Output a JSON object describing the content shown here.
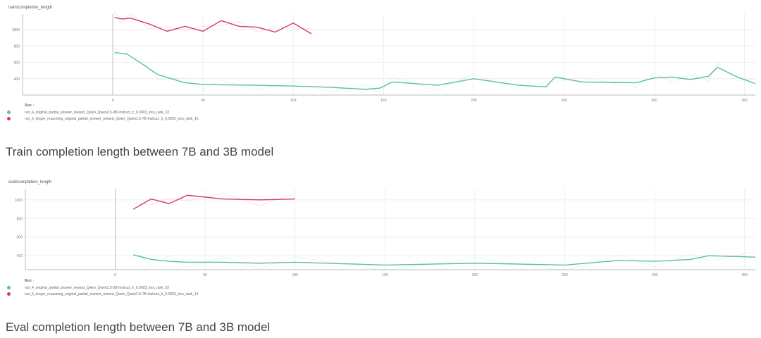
{
  "chart_data": [
    {
      "type": "line",
      "title": "train/completion_length",
      "xlim": [
        -50,
        356
      ],
      "ylim": [
        200,
        1190
      ],
      "xticks": [
        0,
        50,
        100,
        150,
        200,
        250,
        300,
        350
      ],
      "yticks": [
        400,
        600,
        800,
        1000
      ],
      "grid": true,
      "legend_title": "Run ↑",
      "legend_placement": "bottom-left",
      "series": [
        {
          "name": "run_4_original_partial_answer_reward_Qwen_Qwen2.5-3B-Instruct_lr_0.0003_lora_rank_32",
          "color": "#5bbf9c",
          "x": [
            1,
            8,
            15,
            25,
            40,
            50,
            60,
            80,
            100,
            120,
            140,
            148,
            155,
            180,
            200,
            225,
            240,
            245,
            260,
            290,
            300,
            310,
            320,
            330,
            335,
            345,
            356
          ],
          "y": [
            720,
            700,
            600,
            450,
            350,
            330,
            325,
            320,
            310,
            295,
            270,
            285,
            360,
            320,
            400,
            320,
            300,
            420,
            360,
            350,
            410,
            420,
            390,
            430,
            540,
            430,
            340
          ]
        },
        {
          "name": "run_6_longer_reasoning_original_partial_answer_reward_Qwen_Qwen2.5-7B-Instruct_lr_0.0003_lora_rank_16",
          "color": "#d23a72",
          "x": [
            1,
            5,
            10,
            20,
            30,
            40,
            50,
            60,
            70,
            80,
            90,
            100,
            110
          ],
          "y": [
            1150,
            1130,
            1140,
            1070,
            980,
            1040,
            980,
            1110,
            1040,
            1030,
            970,
            1080,
            950
          ]
        }
      ]
    },
    {
      "type": "line",
      "title": "eval/completion_length",
      "xlim": [
        -50,
        356
      ],
      "ylim": [
        250,
        1120
      ],
      "xticks": [
        0,
        50,
        100,
        150,
        200,
        250,
        300,
        350
      ],
      "yticks": [
        400,
        600,
        800,
        1000
      ],
      "grid": true,
      "legend_title": "Run ↑",
      "legend_placement": "bottom-left",
      "series": [
        {
          "name": "run_4_original_partial_answer_reward_Qwen_Qwen2.5-3B-Instruct_lr_0.0003_lora_rank_32",
          "color": "#5bbf9c",
          "x": [
            10,
            20,
            30,
            40,
            60,
            80,
            100,
            150,
            200,
            250,
            280,
            300,
            320,
            330,
            356
          ],
          "y": [
            410,
            360,
            340,
            330,
            330,
            320,
            330,
            300,
            320,
            300,
            350,
            340,
            360,
            400,
            385
          ]
        },
        {
          "name": "run_6_longer_reasoning_original_partial_answer_reward_Qwen_Qwen2.5-7B-Instruct_lr_0.0003_lora_rank_16",
          "color": "#d23a72",
          "x": [
            10,
            20,
            30,
            40,
            60,
            80,
            100
          ],
          "y": [
            900,
            1010,
            960,
            1050,
            1010,
            1000,
            1010
          ]
        }
      ]
    }
  ],
  "headings": [
    "Train completion length between 7B and 3B model",
    "Eval completion length between 7B and 3B model"
  ]
}
